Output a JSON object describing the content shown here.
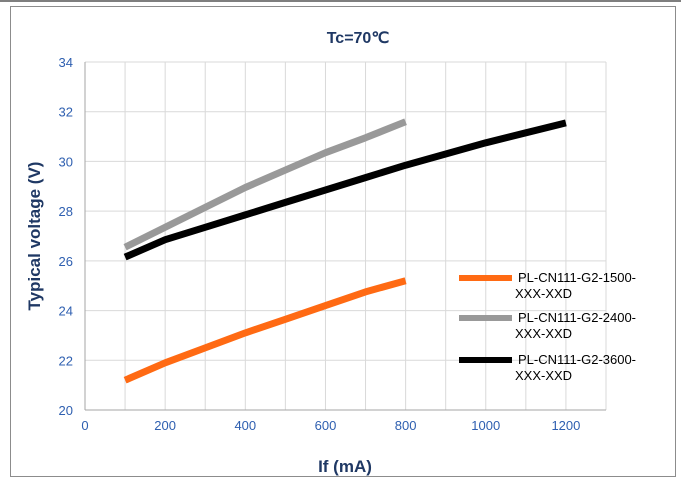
{
  "chart_data": {
    "type": "line",
    "title": "Tc=70℃",
    "xlabel": "If (mA)",
    "ylabel": "Typical voltage (V)",
    "xlim": [
      0,
      1300
    ],
    "ylim": [
      20,
      34
    ],
    "xticks": [
      0,
      200,
      400,
      600,
      800,
      1000,
      1200
    ],
    "yticks": [
      20,
      22,
      24,
      26,
      28,
      30,
      32,
      34
    ],
    "grid": "both",
    "legend_position": "right",
    "series": [
      {
        "name_lines": [
          "PL-CN111-G2-1500-",
          "XXX-XXD"
        ],
        "color": "#ff6a13",
        "x": [
          100,
          200,
          300,
          400,
          500,
          600,
          700,
          800
        ],
        "y": [
          21.2,
          21.9,
          22.5,
          23.1,
          23.65,
          24.2,
          24.75,
          25.2
        ]
      },
      {
        "name_lines": [
          "PL-CN111-G2-2400-",
          "XXX-XXD"
        ],
        "color": "#999999",
        "x": [
          100,
          200,
          300,
          400,
          500,
          600,
          700,
          800
        ],
        "y": [
          26.55,
          27.35,
          28.15,
          28.95,
          29.65,
          30.35,
          30.95,
          31.6
        ]
      },
      {
        "name_lines": [
          "PL-CN111-G2-3600-",
          "XXX-XXD"
        ],
        "color": "#000000",
        "x": [
          100,
          200,
          300,
          400,
          500,
          600,
          700,
          800,
          900,
          1000,
          1100,
          1200
        ],
        "y": [
          26.15,
          26.85,
          27.35,
          27.85,
          28.35,
          28.85,
          29.35,
          29.85,
          30.3,
          30.75,
          31.15,
          31.55
        ]
      }
    ]
  }
}
